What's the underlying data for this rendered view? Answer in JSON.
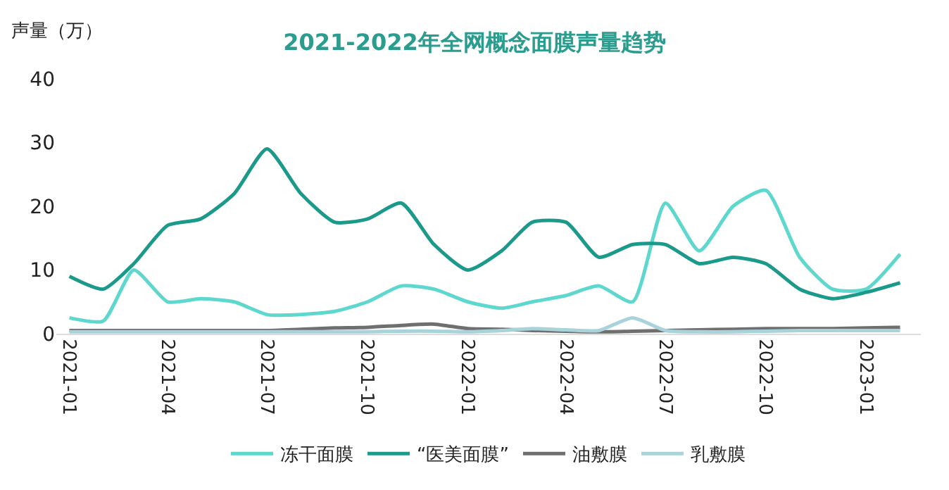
{
  "chart_data": {
    "type": "line",
    "title": "2021-2022年全网概念面膜声量趋势",
    "ylabel": "声量（万）",
    "x": [
      "2021-01",
      "2021-02",
      "2021-03",
      "2021-04",
      "2021-05",
      "2021-06",
      "2021-07",
      "2021-08",
      "2021-09",
      "2021-10",
      "2021-11",
      "2021-12",
      "2022-01",
      "2022-02",
      "2022-03",
      "2022-04",
      "2022-05",
      "2022-06",
      "2022-07",
      "2022-08",
      "2022-09",
      "2022-10",
      "2022-11",
      "2022-12",
      "2023-01",
      "2023-02"
    ],
    "series": [
      {
        "name": "冻干面膜",
        "color": "#5ed8cf",
        "values": [
          2.5,
          2,
          10,
          5,
          5.5,
          5,
          3,
          3,
          3.5,
          5,
          7.5,
          7,
          5,
          4,
          5,
          6,
          7.5,
          5,
          20.5,
          13,
          20,
          22.5,
          12,
          7,
          7,
          12.5
        ]
      },
      {
        "name": "“医美面膜”",
        "color": "#1b9a8b",
        "values": [
          9,
          7,
          11,
          17,
          18,
          22,
          29,
          22,
          17.5,
          18,
          20.5,
          14,
          10,
          13,
          17.5,
          17.5,
          12,
          14,
          14,
          11,
          12,
          11,
          7,
          5.5,
          6.5,
          8
        ]
      },
      {
        "name": "油敷膜",
        "color": "#6f6f6f",
        "values": [
          0.5,
          0.5,
          0.5,
          0.5,
          0.5,
          0.5,
          0.5,
          0.7,
          0.9,
          1,
          1.3,
          1.5,
          0.8,
          0.7,
          0.5,
          0.4,
          0.3,
          0.4,
          0.5,
          0.6,
          0.7,
          0.8,
          0.8,
          0.8,
          0.9,
          1
        ]
      },
      {
        "name": "乳敷膜",
        "color": "#a9d3da",
        "values": [
          0.3,
          0.3,
          0.3,
          0.3,
          0.3,
          0.3,
          0.3,
          0.3,
          0.3,
          0.3,
          0.4,
          0.4,
          0.3,
          0.5,
          0.8,
          0.6,
          0.5,
          2.5,
          0.5,
          0.3,
          0.3,
          0.4,
          0.5,
          0.5,
          0.5,
          0.5
        ]
      }
    ],
    "xlim": [
      "2020-12-20",
      "2023-02-20"
    ],
    "xticks": [
      {
        "value": "2021-01",
        "label": "2021-01"
      },
      {
        "value": "2021-04",
        "label": "2021-04"
      },
      {
        "value": "2021-07",
        "label": "2021-07"
      },
      {
        "value": "2021-10",
        "label": "2021-10"
      },
      {
        "value": "2022-01",
        "label": "2022-01"
      },
      {
        "value": "2022-04",
        "label": "2022-04"
      },
      {
        "value": "2022-07",
        "label": "2022-07"
      },
      {
        "value": "2022-10",
        "label": "2022-10"
      },
      {
        "value": "2023-01",
        "label": "2023-01"
      }
    ],
    "ylim": [
      0,
      40
    ],
    "yticks": [
      0,
      10,
      20,
      30,
      40
    ],
    "legend": "bottom",
    "marker": "none",
    "line_style": "solid"
  }
}
